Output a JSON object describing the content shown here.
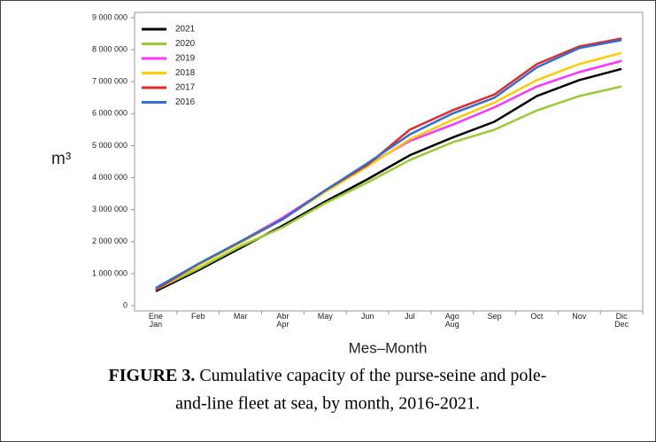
{
  "chart_data": {
    "type": "line",
    "y_label": "m³",
    "x_label": "Mes–Month",
    "caption_label": "FIGURE 3.",
    "caption_lines": [
      "Cumulative capacity of the purse-seine and pole-",
      "and-line fleet at sea, by month, 2016-2021."
    ],
    "categories": [
      "Ene\nJan",
      "Feb",
      "Mar",
      "Abr\nApr",
      "May",
      "Jun",
      "Jul",
      "Ago\nAug",
      "Sep",
      "Oct",
      "Nov",
      "Dic\nDec"
    ],
    "series": [
      {
        "name": "2021",
        "color": "#000000",
        "values": [
          450000,
          1100000,
          1800000,
          2500000,
          3250000,
          3950000,
          4700000,
          5250000,
          5750000,
          6550000,
          7050000,
          7400000
        ]
      },
      {
        "name": "2020",
        "color": "#99cc33",
        "values": [
          500000,
          1150000,
          1850000,
          2450000,
          3200000,
          3850000,
          4550000,
          5100000,
          5500000,
          6100000,
          6550000,
          6850000
        ]
      },
      {
        "name": "2019",
        "color": "#ff33ff",
        "values": [
          500000,
          1250000,
          2000000,
          2750000,
          3600000,
          4400000,
          5150000,
          5650000,
          6200000,
          6850000,
          7300000,
          7650000
        ]
      },
      {
        "name": "2018",
        "color": "#ffcc00",
        "values": [
          500000,
          1250000,
          1950000,
          2700000,
          3550000,
          4350000,
          5200000,
          5800000,
          6350000,
          7050000,
          7550000,
          7900000
        ]
      },
      {
        "name": "2017",
        "color": "#e32a2a",
        "values": [
          500000,
          1300000,
          2000000,
          2700000,
          3600000,
          4400000,
          5500000,
          6100000,
          6600000,
          7550000,
          8100000,
          8350000
        ]
      },
      {
        "name": "2016",
        "color": "#2f6fd0",
        "values": [
          550000,
          1300000,
          2000000,
          2700000,
          3600000,
          4450000,
          5350000,
          6000000,
          6500000,
          7450000,
          8050000,
          8300000
        ]
      }
    ],
    "ylim": [
      0,
      9000000
    ],
    "yticks": [
      0,
      {
        "value": 1000000,
        "label": "1 000 000"
      },
      {
        "value": 2000000,
        "label": "2 000 000"
      },
      {
        "value": 3000000,
        "label": "3 000 000"
      },
      {
        "value": 4000000,
        "label": "4 000 000"
      },
      {
        "value": 5000000,
        "label": "5 000 000"
      },
      {
        "value": 6000000,
        "label": "6 000 000"
      },
      {
        "value": 7000000,
        "label": "7 000 000"
      },
      {
        "value": 8000000,
        "label": "8 000 000"
      },
      {
        "value": 9000000,
        "label": "9 000 000"
      }
    ],
    "legend": "upper left",
    "grid": false
  }
}
